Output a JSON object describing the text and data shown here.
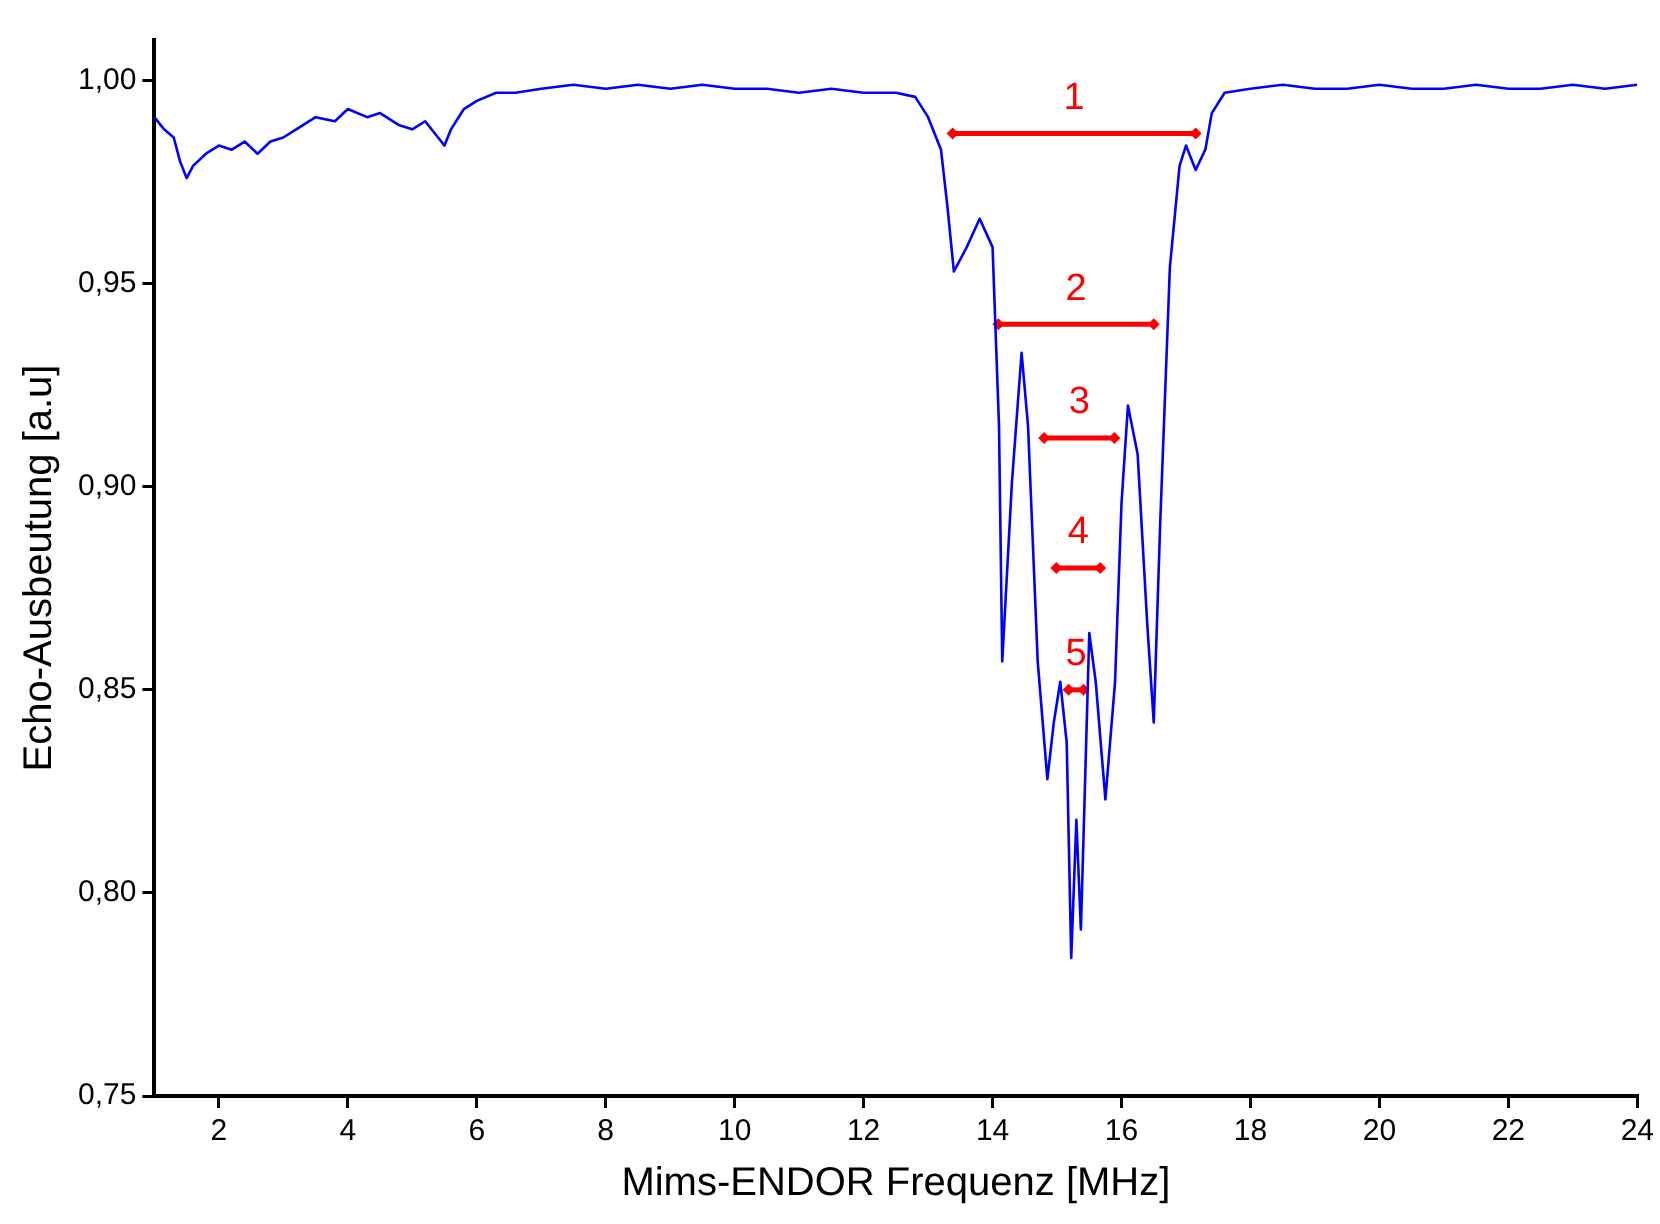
{
  "chart_data": {
    "type": "line",
    "xlabel": "Mims-ENDOR Frequenz [MHz]",
    "ylabel": "Echo-Ausbeutung [a.u]",
    "xlim": [
      1,
      24
    ],
    "xticks": [
      2,
      4,
      6,
      8,
      10,
      12,
      14,
      16,
      18,
      20,
      22,
      24
    ],
    "ylim": [
      0.75,
      1.01
    ],
    "yticks": [
      {
        "value": 0.75,
        "label": "0,75"
      },
      {
        "value": 0.8,
        "label": "0,80"
      },
      {
        "value": 0.85,
        "label": "0,85"
      },
      {
        "value": 0.9,
        "label": "0,90"
      },
      {
        "value": 0.95,
        "label": "0,95"
      },
      {
        "value": 1,
        "label": "1,00"
      }
    ],
    "grid": false,
    "legend": false,
    "marker": "none",
    "line_style": "solid",
    "series": [
      {
        "color": "#0000ff",
        "x": [
          1,
          1.15,
          1.3,
          1.4,
          1.5,
          1.6,
          1.8,
          2,
          2.2,
          2.4,
          2.6,
          2.8,
          3,
          3.2,
          3.5,
          3.8,
          4,
          4.3,
          4.5,
          4.8,
          5,
          5.2,
          5.4,
          5.5,
          5.6,
          5.8,
          6,
          6.3,
          6.6,
          7,
          7.5,
          8,
          8.5,
          9,
          9.5,
          10,
          10.5,
          11,
          11.5,
          12,
          12.5,
          12.8,
          13,
          13.2,
          13.3,
          13.4,
          13.6,
          13.8,
          14,
          14.1,
          14.15,
          14.3,
          14.45,
          14.55,
          14.7,
          14.85,
          14.95,
          15.05,
          15.15,
          15.22,
          15.3,
          15.37,
          15.5,
          15.6,
          15.75,
          15.9,
          16,
          16.1,
          16.25,
          16.4,
          16.5,
          16.6,
          16.75,
          16.9,
          17,
          17.15,
          17.3,
          17.4,
          17.6,
          18,
          18.5,
          19,
          19.5,
          20,
          20.5,
          21,
          21.5,
          22,
          22.5,
          23,
          23.5,
          24
        ],
        "values": [
          0.991,
          0.988,
          0.986,
          0.98,
          0.976,
          0.979,
          0.982,
          0.984,
          0.983,
          0.985,
          0.982,
          0.985,
          0.986,
          0.988,
          0.991,
          0.99,
          0.993,
          0.991,
          0.992,
          0.989,
          0.988,
          0.99,
          0.986,
          0.984,
          0.988,
          0.993,
          0.995,
          0.997,
          0.997,
          0.998,
          0.999,
          0.998,
          0.999,
          0.998,
          0.999,
          0.998,
          0.998,
          0.997,
          0.998,
          0.997,
          0.997,
          0.996,
          0.991,
          0.983,
          0.969,
          0.953,
          0.959,
          0.966,
          0.959,
          0.915,
          0.857,
          0.901,
          0.933,
          0.915,
          0.857,
          0.828,
          0.842,
          0.852,
          0.837,
          0.784,
          0.818,
          0.791,
          0.864,
          0.852,
          0.823,
          0.852,
          0.896,
          0.92,
          0.908,
          0.866,
          0.842,
          0.891,
          0.954,
          0.979,
          0.984,
          0.978,
          0.983,
          0.992,
          0.997,
          0.998,
          0.999,
          0.998,
          0.998,
          0.999,
          0.998,
          0.998,
          0.999,
          0.998,
          0.998,
          0.999,
          0.998,
          0.999
        ]
      },
      {
        "name": "1",
        "color": "#ff0000",
        "marker": "diamond",
        "x": [
          13.38,
          17.15
        ],
        "values": [
          0.987,
          0.987
        ]
      },
      {
        "name": "2",
        "color": "#ff0000",
        "marker": "diamond",
        "x": [
          14.09,
          16.5
        ],
        "values": [
          0.94,
          0.94
        ]
      },
      {
        "name": "3",
        "color": "#ff0000",
        "marker": "diamond",
        "x": [
          14.8,
          15.89
        ],
        "values": [
          0.912,
          0.912
        ]
      },
      {
        "name": "4",
        "color": "#ff0000",
        "marker": "diamond",
        "x": [
          14.99,
          15.67
        ],
        "values": [
          0.88,
          0.88
        ]
      },
      {
        "name": "5",
        "color": "#ff0000",
        "marker": "diamond",
        "x": [
          15.18,
          15.41
        ],
        "values": [
          0.85,
          0.85
        ]
      }
    ]
  }
}
